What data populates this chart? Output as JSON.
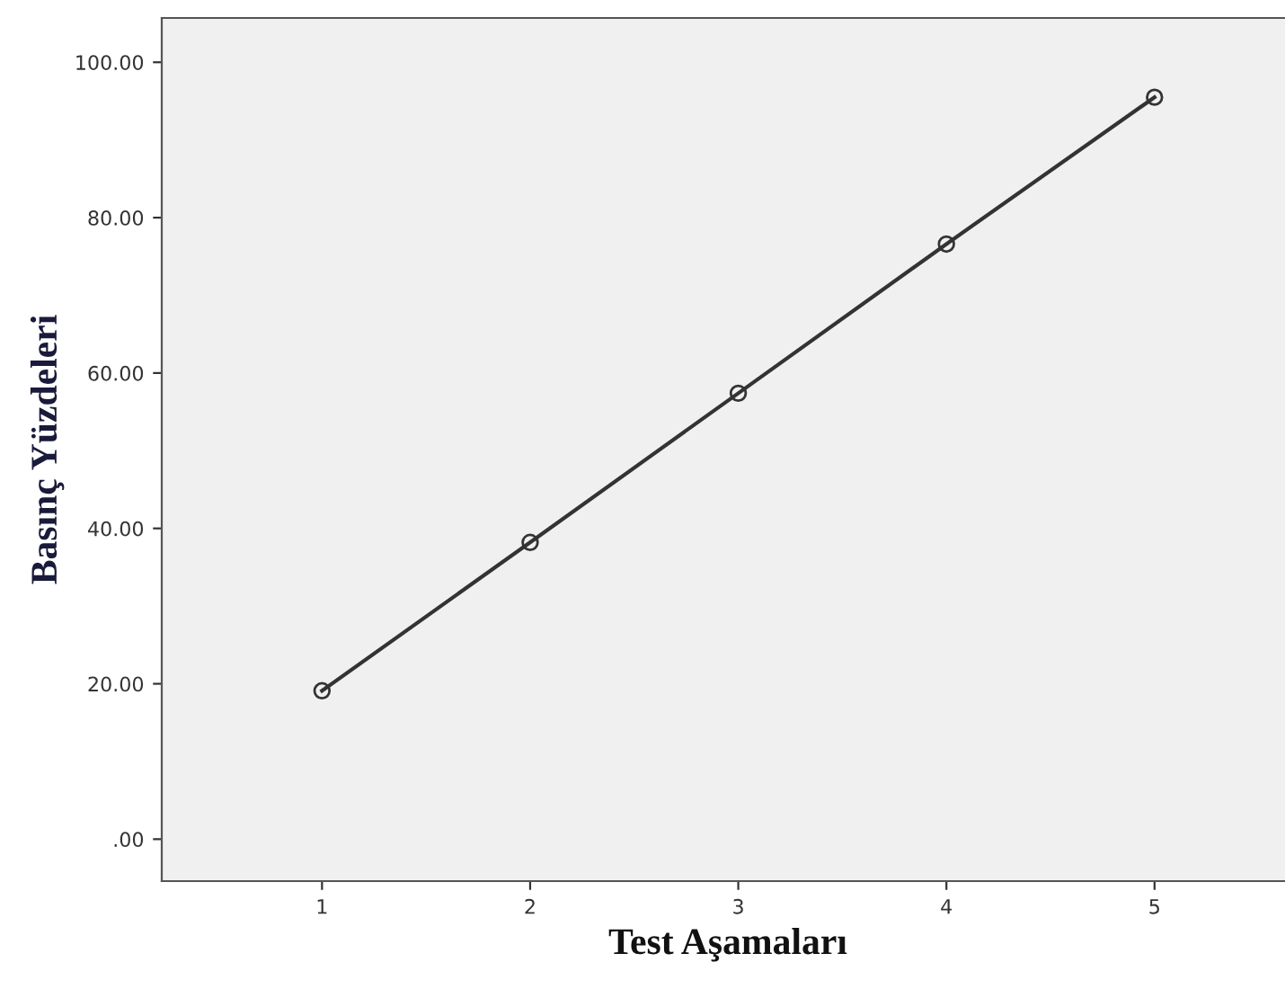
{
  "chart_data": {
    "type": "line",
    "xlabel": "Test Aşamaları",
    "ylabel": "Basınç Yüzdeleri",
    "x": [
      1,
      2,
      3,
      4,
      5
    ],
    "series": [
      {
        "color": "#333333",
        "values": [
          19.1,
          38.2,
          57.4,
          76.6,
          95.5
        ]
      }
    ],
    "xlim": [
      0.23,
      5.67
    ],
    "xticks": [
      1,
      2,
      3,
      4,
      5
    ],
    "ylim": [
      -5.4,
      105.7
    ],
    "yticks": [
      {
        "value": 0,
        "label": ".00"
      },
      {
        "value": 20,
        "label": "20.00"
      },
      {
        "value": 40,
        "label": "40.00"
      },
      {
        "value": 60,
        "label": "60.00"
      },
      {
        "value": 80,
        "label": "80.00"
      },
      {
        "value": 100,
        "label": "100.00"
      }
    ],
    "grid": false,
    "marker": "circle",
    "line_style": "solid",
    "legend": false
  }
}
